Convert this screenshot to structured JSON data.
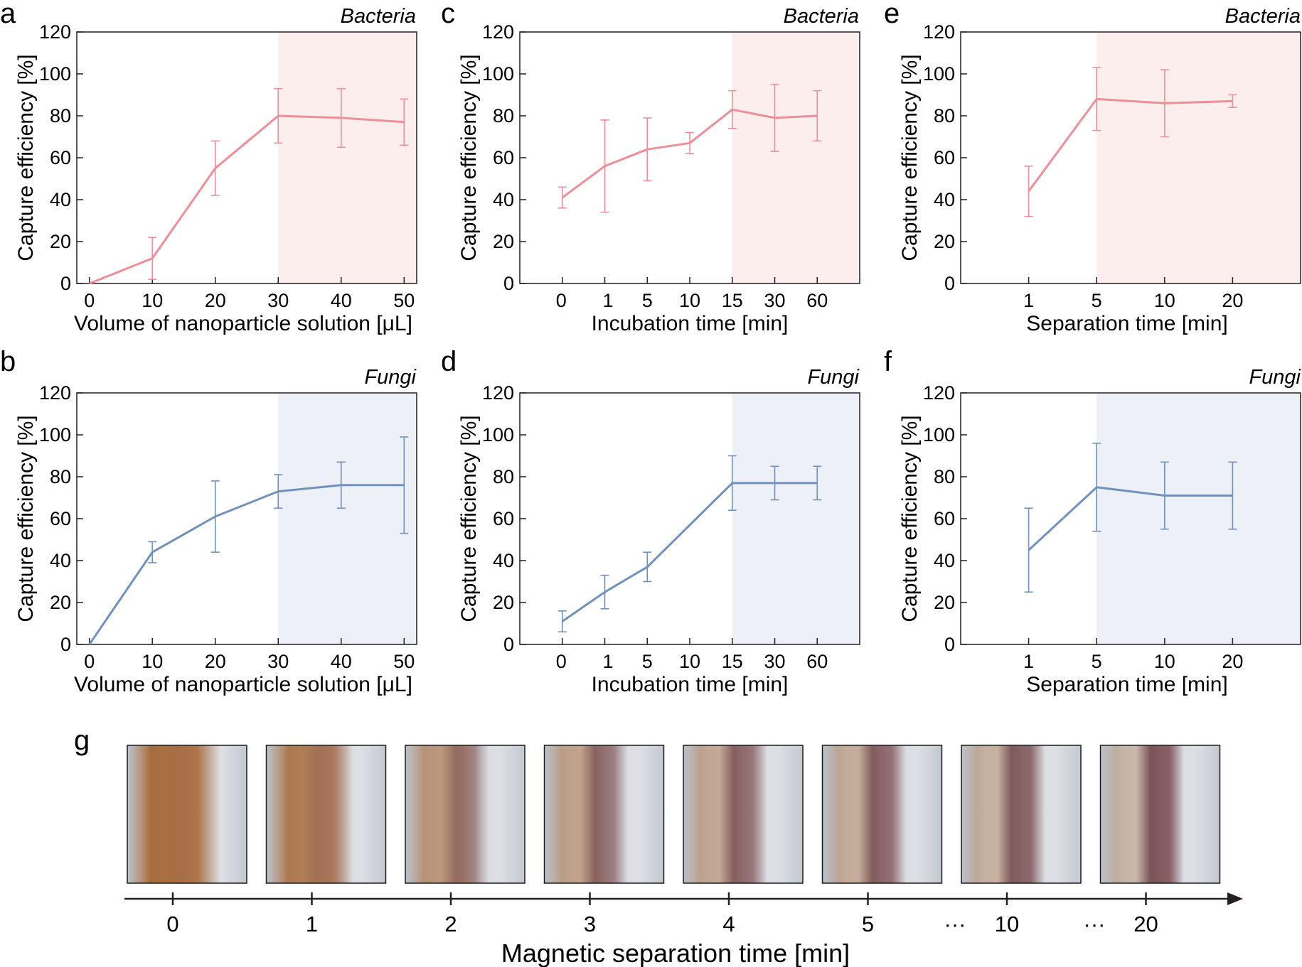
{
  "colors": {
    "bacteria_line": "#ec8f98",
    "bacteria_shade": "#fdeeee",
    "fungi_line": "#7191bd",
    "fungi_shade": "#eef0f7",
    "axis": "#231f20"
  },
  "chart_data": [
    {
      "panel": "a",
      "organism": "Bacteria",
      "type": "line",
      "series_key": "bacteria",
      "x_scale": "linear",
      "xlim": [
        -2,
        52
      ],
      "ylim": [
        0,
        120
      ],
      "x": [
        0,
        10,
        20,
        30,
        40,
        50
      ],
      "values": [
        0,
        12,
        55,
        80,
        79,
        77
      ],
      "errors": [
        0,
        10,
        13,
        13,
        14,
        11
      ],
      "shade_from": 30,
      "shade_to": 52,
      "xticks": [
        0,
        10,
        20,
        30,
        40,
        50
      ],
      "xtick_labels": [
        "0",
        "10",
        "20",
        "30",
        "40",
        "50"
      ],
      "yticks": [
        0,
        20,
        40,
        60,
        80,
        100,
        120
      ],
      "ytick_labels": [
        "0",
        "20",
        "40",
        "60",
        "80",
        "100",
        "120"
      ],
      "xlabel": "Volume of nanoparticle solution [μL]",
      "ylabel": "Capture efficiency [%]"
    },
    {
      "panel": "b",
      "organism": "Fungi",
      "type": "line",
      "series_key": "fungi",
      "x_scale": "linear",
      "xlim": [
        -2,
        52
      ],
      "ylim": [
        0,
        120
      ],
      "x": [
        0,
        10,
        20,
        30,
        40,
        50
      ],
      "values": [
        0,
        44,
        61,
        73,
        76,
        76
      ],
      "errors": [
        0,
        5,
        17,
        8,
        11,
        23
      ],
      "shade_from": 30,
      "shade_to": 52,
      "xticks": [
        0,
        10,
        20,
        30,
        40,
        50
      ],
      "xtick_labels": [
        "0",
        "10",
        "20",
        "30",
        "40",
        "50"
      ],
      "yticks": [
        0,
        20,
        40,
        60,
        80,
        100,
        120
      ],
      "ytick_labels": [
        "0",
        "20",
        "40",
        "60",
        "80",
        "100",
        "120"
      ],
      "xlabel": "Volume of nanoparticle solution [μL]",
      "ylabel": "Capture efficiency [%]"
    },
    {
      "panel": "c",
      "organism": "Bacteria",
      "type": "line",
      "series_key": "bacteria",
      "x_scale": "piecewise",
      "x_breaks": [
        -2,
        0,
        1,
        5,
        10,
        15,
        30,
        60,
        61
      ],
      "ylim": [
        0,
        120
      ],
      "x": [
        0,
        1,
        5,
        10,
        15,
        30,
        60
      ],
      "values": [
        41,
        56,
        64,
        67,
        83,
        79,
        80
      ],
      "errors": [
        5,
        22,
        15,
        5,
        9,
        16,
        12
      ],
      "shade_from": 15,
      "shade_to": 61,
      "xticks": [
        0,
        1,
        5,
        10,
        15,
        30,
        60
      ],
      "xtick_labels": [
        "0",
        "1",
        "5",
        "10",
        "15",
        "30",
        "60"
      ],
      "yticks": [
        0,
        20,
        40,
        60,
        80,
        100,
        120
      ],
      "ytick_labels": [
        "0",
        "20",
        "40",
        "60",
        "80",
        "100",
        "120"
      ],
      "xlabel": "Incubation time [min]",
      "ylabel": "Capture efficiency [%]"
    },
    {
      "panel": "d",
      "organism": "Fungi",
      "type": "line",
      "series_key": "fungi",
      "x_scale": "piecewise",
      "x_breaks": [
        -2,
        0,
        1,
        5,
        10,
        15,
        30,
        60,
        61
      ],
      "ylim": [
        0,
        120
      ],
      "x": [
        0,
        1,
        5,
        10,
        15,
        30,
        60
      ],
      "values": [
        11,
        25,
        37,
        null,
        77,
        77,
        77
      ],
      "errors": [
        5,
        8,
        7,
        null,
        13,
        8,
        8
      ],
      "shade_from": 15,
      "shade_to": 61,
      "xticks": [
        0,
        1,
        5,
        10,
        15,
        30,
        60
      ],
      "xtick_labels": [
        "0",
        "1",
        "5",
        "10",
        "15",
        "30",
        "60"
      ],
      "yticks": [
        0,
        20,
        40,
        60,
        80,
        100,
        120
      ],
      "ytick_labels": [
        "0",
        "20",
        "40",
        "60",
        "80",
        "100",
        "120"
      ],
      "xlabel": "Incubation time [min]",
      "ylabel": "Capture efficiency [%]"
    },
    {
      "panel": "e",
      "organism": "Bacteria",
      "type": "line",
      "series_key": "bacteria",
      "x_scale": "piecewise",
      "x_breaks": [
        0,
        1,
        5,
        10,
        20,
        20.05
      ],
      "ylim": [
        0,
        120
      ],
      "x": [
        1,
        5,
        10,
        20
      ],
      "values": [
        44,
        88,
        86,
        87
      ],
      "errors": [
        12,
        15,
        16,
        3
      ],
      "shade_from": 5,
      "shade_to": 20.05,
      "xticks": [
        1,
        5,
        10,
        20
      ],
      "xtick_labels": [
        "1",
        "5",
        "10",
        "20"
      ],
      "yticks": [
        0,
        20,
        40,
        60,
        80,
        100,
        120
      ],
      "ytick_labels": [
        "0",
        "20",
        "40",
        "60",
        "80",
        "100",
        "120"
      ],
      "xlabel": "Separation time [min]",
      "ylabel": "Capture efficiency [%]"
    },
    {
      "panel": "f",
      "organism": "Fungi",
      "type": "line",
      "series_key": "fungi",
      "x_scale": "piecewise",
      "x_breaks": [
        0,
        1,
        5,
        10,
        20,
        20.05
      ],
      "ylim": [
        0,
        120
      ],
      "x": [
        1,
        5,
        10,
        20
      ],
      "values": [
        45,
        75,
        71,
        71
      ],
      "errors": [
        20,
        21,
        16,
        16
      ],
      "shade_from": 5,
      "shade_to": 20.05,
      "xticks": [
        1,
        5,
        10,
        20
      ],
      "xtick_labels": [
        "1",
        "5",
        "10",
        "20"
      ],
      "yticks": [
        0,
        20,
        40,
        60,
        80,
        100,
        120
      ],
      "ytick_labels": [
        "0",
        "20",
        "40",
        "60",
        "80",
        "100",
        "120"
      ],
      "xlabel": "Separation time [min]",
      "ylabel": "Capture efficiency [%]"
    }
  ],
  "panel_g": {
    "letter": "g",
    "time_labels": [
      "0",
      "1",
      "2",
      "3",
      "4",
      "5",
      "10",
      "20"
    ],
    "ellipsis_labels": [
      "···",
      "···"
    ],
    "axis_label": "Magnetic separation time [min]",
    "separation_fraction": [
      0.0,
      0.18,
      0.55,
      0.72,
      0.8,
      0.86,
      0.93,
      1.0
    ]
  }
}
